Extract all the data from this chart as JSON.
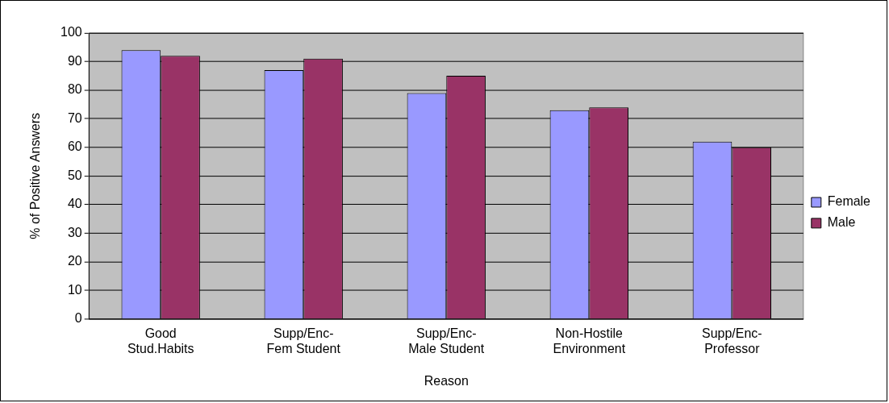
{
  "chart_data": {
    "type": "bar",
    "xlabel": "Reason",
    "ylabel": "% of Positive Answers",
    "categories": [
      "Good\nStud.Habits",
      "Supp/Enc-\nFem Student",
      "Supp/Enc-\nMale Student",
      "Non-Hostile\nEnvironment",
      "Supp/Enc-\nProfessor"
    ],
    "series": [
      {
        "name": "Female",
        "color": "#9999ff",
        "values": [
          94,
          87,
          79,
          73,
          62
        ]
      },
      {
        "name": "Male",
        "color": "#993366",
        "values": [
          92,
          91,
          85,
          74,
          60
        ]
      }
    ],
    "ylim": [
      0,
      100
    ],
    "yticks": [
      0,
      10,
      20,
      30,
      40,
      50,
      60,
      70,
      80,
      90,
      100
    ],
    "grid": "y",
    "legend": "right"
  }
}
